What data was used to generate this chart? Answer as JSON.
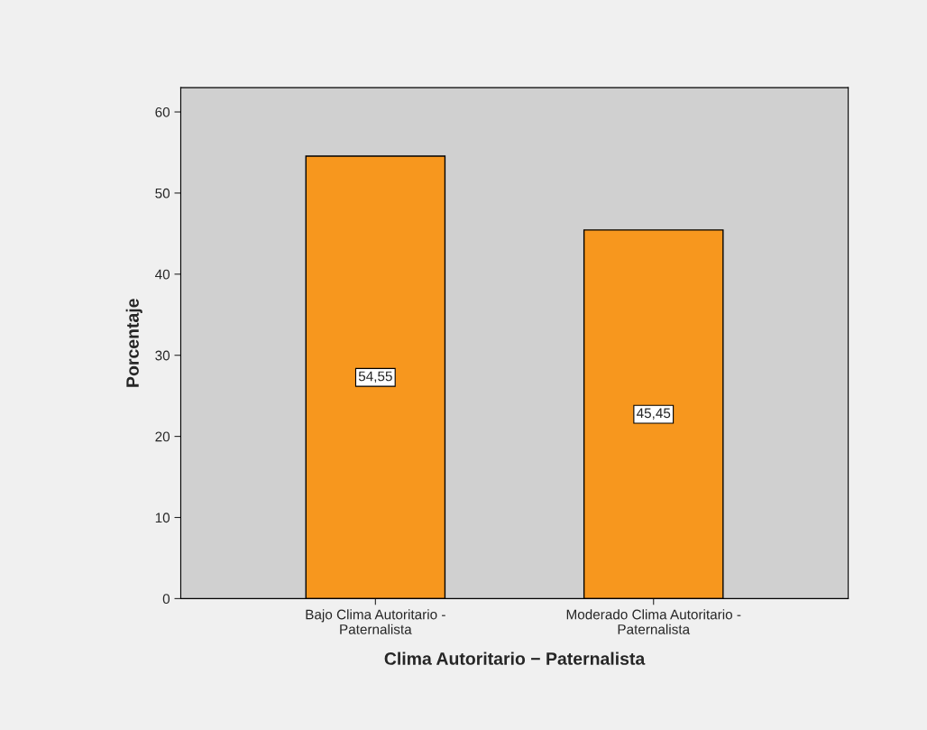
{
  "chart_data": {
    "type": "bar",
    "xlabel": "Clima Autoritario − Paternalista",
    "ylabel": "Porcentaje",
    "categories": [
      "Bajo Clima Autoritario -\nPaternalista",
      "Moderado Clima Autoritario -\nPaternalista"
    ],
    "values": [
      54.55,
      45.45
    ],
    "value_labels": [
      "54,55",
      "45,45"
    ],
    "color": "#f7971e",
    "ylim": [
      0,
      63
    ],
    "yticks": [
      0,
      10,
      20,
      30,
      40,
      50,
      60
    ]
  }
}
